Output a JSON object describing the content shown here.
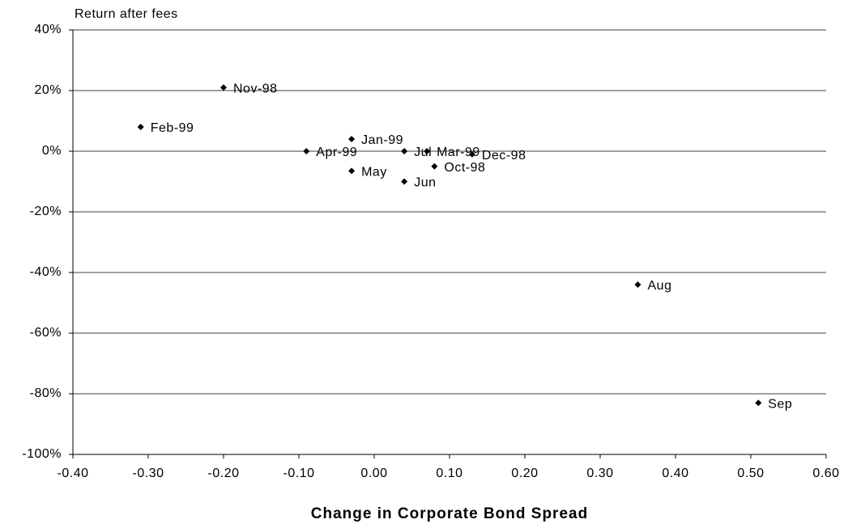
{
  "chart_data": {
    "type": "scatter",
    "y_label": "Return after fees",
    "x_label": "Change in Corporate Bond Spread",
    "x": [
      -0.2,
      -0.31,
      -0.03,
      -0.09,
      0.04,
      0.07,
      0.13,
      0.08,
      -0.03,
      0.04,
      0.35,
      0.51
    ],
    "values": [
      21,
      8,
      4,
      0,
      0,
      0,
      -1,
      -5,
      -6.5,
      -10,
      -44,
      -83
    ],
    "point_labels": [
      "Nov-98",
      "Feb-99",
      "Jan-99",
      "Apr-99",
      "Jul",
      "Mar-99",
      "Dec-98",
      "Oct-98",
      "May",
      "Jun",
      "Aug",
      "Sep"
    ],
    "color": "#000000",
    "xlim": [
      -0.4,
      0.6
    ],
    "ylim": [
      -100,
      40
    ],
    "xticks": [
      {
        "value": -0.4,
        "label": "-0.40"
      },
      {
        "value": -0.3,
        "label": "-0.30"
      },
      {
        "value": -0.2,
        "label": "-0.20"
      },
      {
        "value": -0.1,
        "label": "-0.10"
      },
      {
        "value": 0,
        "label": "0.00"
      },
      {
        "value": 0.1,
        "label": "0.10"
      },
      {
        "value": 0.2,
        "label": "0.20"
      },
      {
        "value": 0.3,
        "label": "0.30"
      },
      {
        "value": 0.4,
        "label": "0.40"
      },
      {
        "value": 0.5,
        "label": "0.50"
      },
      {
        "value": 0.6,
        "label": "0.60"
      }
    ],
    "yticks": [
      {
        "value": -100,
        "label": "-100%"
      },
      {
        "value": -80,
        "label": "-80%"
      },
      {
        "value": -60,
        "label": "-60%"
      },
      {
        "value": -40,
        "label": "-40%"
      },
      {
        "value": -20,
        "label": "-20%"
      },
      {
        "value": 0,
        "label": "0%"
      },
      {
        "value": 20,
        "label": "20%"
      },
      {
        "value": 40,
        "label": "40%"
      }
    ],
    "grid": true
  }
}
